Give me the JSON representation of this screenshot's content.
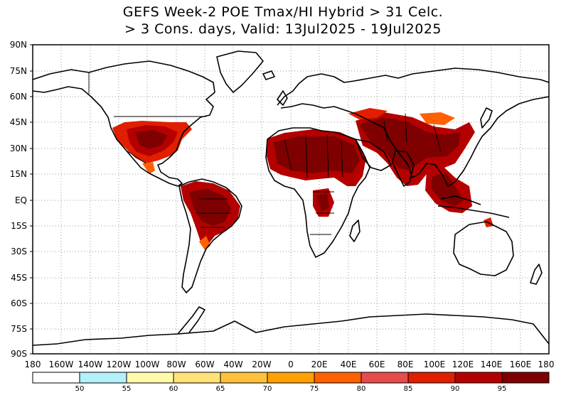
{
  "title_line1": "GEFS Week-2 POE Tmax/HI Hybrid > 31 Celc.",
  "title_line2": "> 3 Cons. days, Valid: 13Jul2025 - 19Jul2025",
  "lat_labels": [
    "90N",
    "75N",
    "60N",
    "45N",
    "30N",
    "15N",
    "EQ",
    "15S",
    "30S",
    "45S",
    "60S",
    "75S",
    "90S"
  ],
  "lon_labels": [
    "180",
    "160W",
    "140W",
    "120W",
    "100W",
    "80W",
    "60W",
    "40W",
    "20W",
    "0",
    "20E",
    "40E",
    "60E",
    "80E",
    "100E",
    "120E",
    "140E",
    "160E",
    "180"
  ],
  "colorbar": {
    "labels": [
      "50",
      "55",
      "60",
      "65",
      "70",
      "75",
      "80",
      "85",
      "90",
      "95"
    ],
    "colors": [
      "#ffffff",
      "#b4f0fa",
      "#fffaaa",
      "#ffe178",
      "#ffc03c",
      "#ffa000",
      "#ff6000",
      "#e84b4b",
      "#e01e00",
      "#b40000",
      "#7e0000"
    ]
  }
}
